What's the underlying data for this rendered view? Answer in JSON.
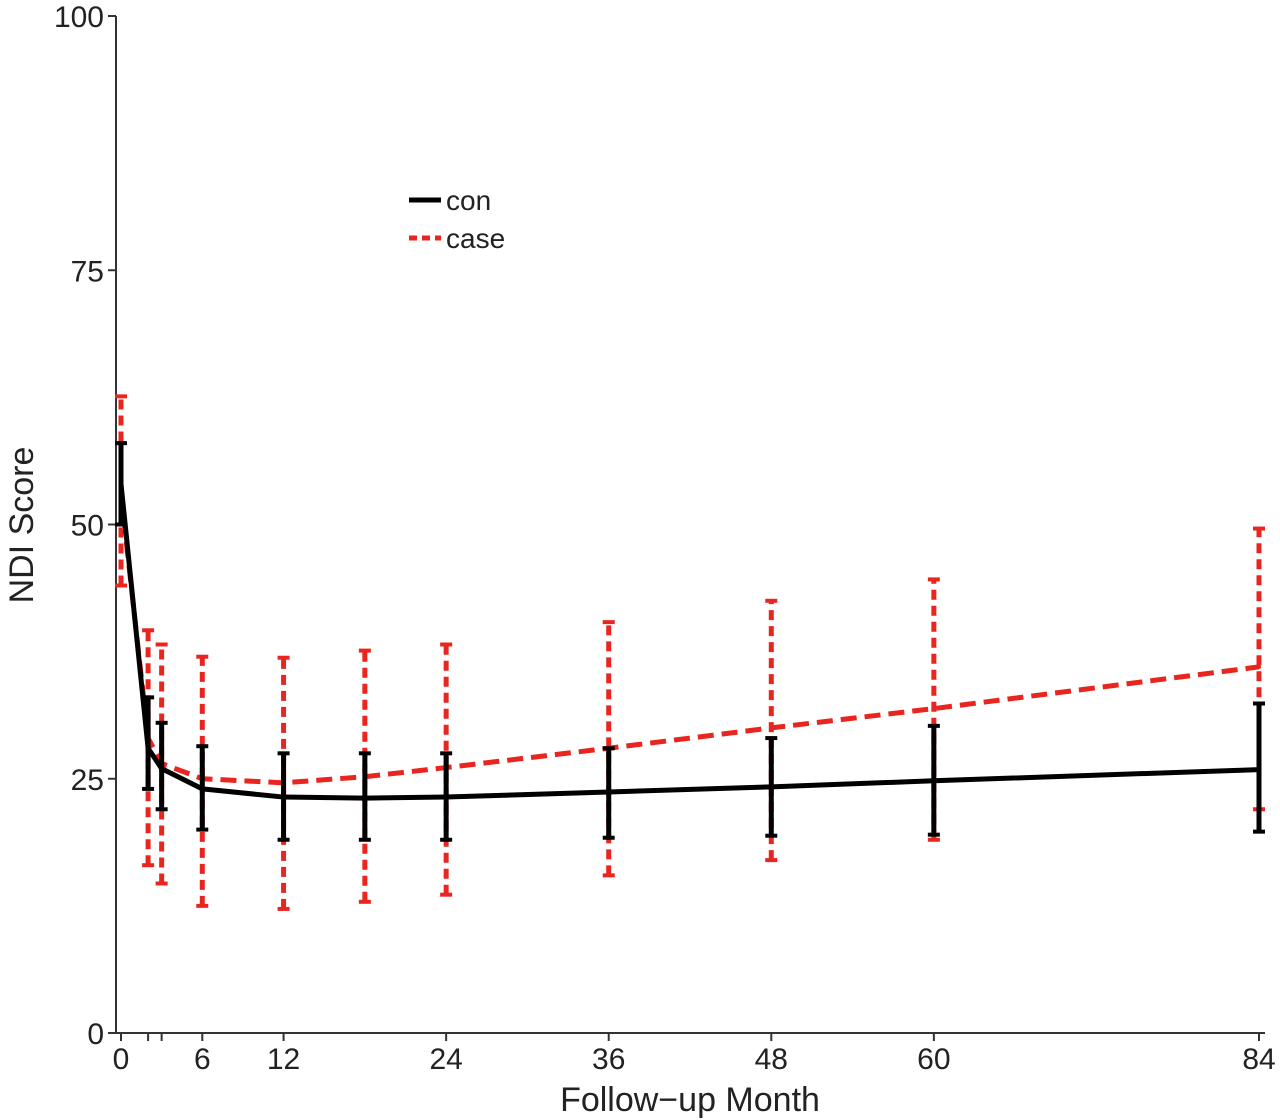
{
  "chart_data": {
    "type": "line",
    "title": "",
    "xlabel": "Follow−up Month",
    "ylabel": "NDI Score",
    "xlim": [
      0,
      84
    ],
    "ylim": [
      0,
      100
    ],
    "xticks": [
      0,
      6,
      12,
      24,
      36,
      48,
      60,
      84
    ],
    "yticks": [
      0,
      25,
      50,
      75,
      100
    ],
    "minor_xticks": [
      2,
      3
    ],
    "grid": false,
    "legend_position": "upper-left",
    "series": [
      {
        "name": "con",
        "color": "#000000",
        "style": "solid",
        "x": [
          0,
          2,
          3,
          6,
          12,
          18,
          24,
          36,
          48,
          60,
          84
        ],
        "y": [
          54,
          28,
          26,
          24,
          23.2,
          23.1,
          23.2,
          23.7,
          24.2,
          24.8,
          25.9
        ],
        "error_low": [
          50,
          24,
          22,
          20,
          19,
          19,
          19,
          19.2,
          19.4,
          19.5,
          19.8
        ],
        "error_high": [
          58,
          33,
          30.5,
          28.2,
          27.5,
          27.5,
          27.5,
          28,
          29,
          30.2,
          32.4
        ]
      },
      {
        "name": "case",
        "color": "#e8251f",
        "style": "dashed",
        "x": [
          0,
          2,
          3,
          6,
          12,
          18,
          24,
          36,
          48,
          60,
          84
        ],
        "y": [
          53,
          29,
          26.5,
          25,
          24.6,
          25.2,
          26.1,
          28,
          30,
          31.9,
          36
        ],
        "error_low": [
          44,
          16.5,
          14.7,
          12.5,
          12.2,
          12.9,
          13.6,
          15.5,
          17,
          19,
          22
        ],
        "error_high": [
          62.6,
          39.6,
          38.2,
          37,
          36.9,
          37.6,
          38.2,
          40.4,
          42.5,
          44.6,
          49.6
        ]
      }
    ]
  }
}
